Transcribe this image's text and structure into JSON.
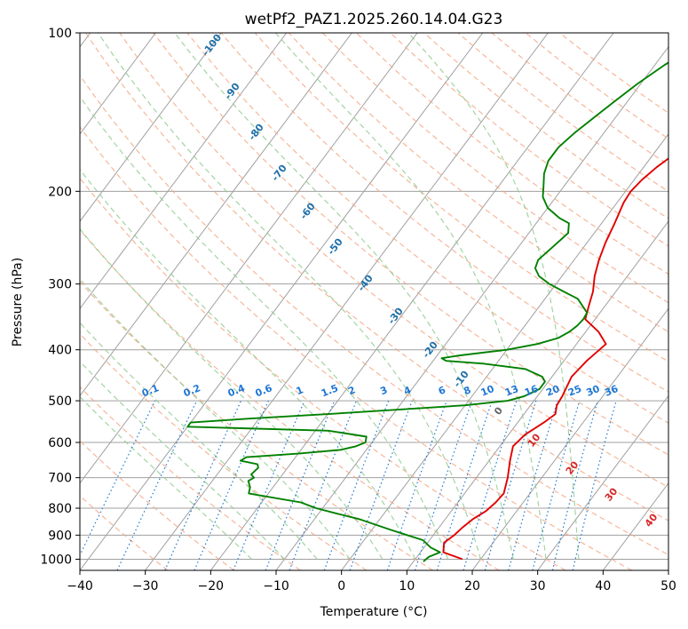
{
  "chart_data": {
    "type": "line",
    "title": "wetPf2_PAZ1.2025.260.14.04.G23",
    "xlabel": "Temperature (°C)",
    "ylabel": "Pressure (hPa)",
    "xlim": [
      -40,
      50
    ],
    "ylim": [
      1050,
      100
    ],
    "y_scale": "log",
    "grid": true,
    "x_ticks": [
      "−40",
      "−30",
      "−20",
      "−10",
      "0",
      "10",
      "20",
      "30",
      "40",
      "50"
    ],
    "y_ticks": [
      "100",
      "200",
      "300",
      "400",
      "500",
      "600",
      "700",
      "800",
      "900",
      "1000"
    ],
    "series": [
      {
        "color": "#e00000",
        "points": [
          [
            1000,
            17.2
          ],
          [
            970,
            13.5
          ],
          [
            930,
            12.5
          ],
          [
            900,
            13.2
          ],
          [
            870,
            13.6
          ],
          [
            840,
            14.2
          ],
          [
            810,
            15.3
          ],
          [
            780,
            15.8
          ],
          [
            750,
            16.0
          ],
          [
            700,
            14.8
          ],
          [
            650,
            13.2
          ],
          [
            610,
            12.0
          ],
          [
            580,
            12.5
          ],
          [
            550,
            14.0
          ],
          [
            530,
            14.8
          ],
          [
            510,
            14.0
          ],
          [
            490,
            13.8
          ],
          [
            450,
            13.0
          ],
          [
            420,
            13.5
          ],
          [
            390,
            14.5
          ],
          [
            370,
            12.0
          ],
          [
            350,
            8.5
          ],
          [
            330,
            7.5
          ],
          [
            310,
            6.5
          ],
          [
            290,
            5.0
          ],
          [
            270,
            3.8
          ],
          [
            250,
            2.8
          ],
          [
            230,
            2.0
          ],
          [
            210,
            1.0
          ],
          [
            200,
            0.8
          ],
          [
            190,
            1.2
          ],
          [
            180,
            2.0
          ],
          [
            170,
            3.2
          ],
          [
            160,
            4.5
          ],
          [
            150,
            6.0
          ],
          [
            140,
            7.2
          ],
          [
            130,
            8.2
          ],
          [
            125,
            8.2
          ],
          [
            120,
            9.0
          ],
          [
            115,
            10.5
          ],
          [
            110,
            13.0
          ],
          [
            105,
            15.5
          ],
          [
            100,
            17.0
          ]
        ]
      },
      {
        "color": "#008000",
        "points": [
          [
            1010,
            11.5
          ],
          [
            990,
            11.8
          ],
          [
            970,
            13.0
          ],
          [
            950,
            11.0
          ],
          [
            920,
            9.0
          ],
          [
            900,
            6.0
          ],
          [
            880,
            3.0
          ],
          [
            860,
            0.0
          ],
          [
            840,
            -3.0
          ],
          [
            820,
            -7.0
          ],
          [
            800,
            -11.0
          ],
          [
            780,
            -14.0
          ],
          [
            760,
            -20.0
          ],
          [
            750,
            -23.0
          ],
          [
            730,
            -23.5
          ],
          [
            720,
            -24.0
          ],
          [
            710,
            -24.5
          ],
          [
            700,
            -24.0
          ],
          [
            690,
            -24.8
          ],
          [
            670,
            -24.5
          ],
          [
            660,
            -25.0
          ],
          [
            650,
            -28.0
          ],
          [
            640,
            -27.5
          ],
          [
            630,
            -20.0
          ],
          [
            620,
            -14.0
          ],
          [
            610,
            -12.0
          ],
          [
            600,
            -11.0
          ],
          [
            585,
            -11.5
          ],
          [
            570,
            -18.0
          ],
          [
            560,
            -40.0
          ],
          [
            550,
            -40.0
          ],
          [
            540,
            -31.0
          ],
          [
            530,
            -20.0
          ],
          [
            520,
            -10.0
          ],
          [
            510,
            0.0
          ],
          [
            500,
            6.0
          ],
          [
            490,
            8.0
          ],
          [
            475,
            9.5
          ],
          [
            460,
            9.5
          ],
          [
            450,
            8.5
          ],
          [
            435,
            5.0
          ],
          [
            425,
            -2.0
          ],
          [
            420,
            -8.0
          ],
          [
            415,
            -9.0
          ],
          [
            410,
            -6.5
          ],
          [
            400,
            0.0
          ],
          [
            390,
            4.0
          ],
          [
            380,
            6.5
          ],
          [
            370,
            7.5
          ],
          [
            360,
            8.0
          ],
          [
            350,
            8.2
          ],
          [
            340,
            8.0
          ],
          [
            320,
            5.0
          ],
          [
            310,
            2.0
          ],
          [
            300,
            -1.0
          ],
          [
            290,
            -3.5
          ],
          [
            280,
            -5.0
          ],
          [
            270,
            -5.5
          ],
          [
            260,
            -5.0
          ],
          [
            250,
            -4.5
          ],
          [
            240,
            -4.0
          ],
          [
            230,
            -5.0
          ],
          [
            225,
            -7.0
          ],
          [
            215,
            -10.0
          ],
          [
            205,
            -12.0
          ],
          [
            195,
            -13.2
          ],
          [
            185,
            -14.5
          ],
          [
            175,
            -15.3
          ],
          [
            165,
            -15.3
          ],
          [
            155,
            -14.5
          ],
          [
            145,
            -13.3
          ],
          [
            135,
            -12.0
          ],
          [
            125,
            -10.5
          ],
          [
            115,
            -8.5
          ],
          [
            108,
            -6.5
          ],
          [
            103,
            -5.0
          ],
          [
            100,
            -4.0
          ]
        ]
      }
    ],
    "dry_adiabat_labels": [
      "-100",
      "-90",
      "-80",
      "-70",
      "-60",
      "-50",
      "-40",
      "-30",
      "-20",
      "-10",
      "0",
      "10",
      "20",
      "30",
      "40"
    ],
    "mixing_ratio_labels": [
      "0.1",
      "0.2",
      "0.4",
      "0.6",
      "1",
      "1.5",
      "2",
      "3",
      "4",
      "6",
      "8",
      "10",
      "13",
      "16",
      "20",
      "25",
      "30",
      "36"
    ],
    "colors": {
      "temperature": "#e00000",
      "dewpoint": "#008000",
      "dry_adiabats": "#f4a582",
      "moist_adiabats": "#8cc98c",
      "mixing_ratio": "#1f77d4",
      "isotherms": "#a0a0a0",
      "adiabat_labels_cold": "#1f6fa8",
      "adiabat_labels_warm": "#d62728",
      "adiabat_label_zero": "#666666"
    }
  }
}
